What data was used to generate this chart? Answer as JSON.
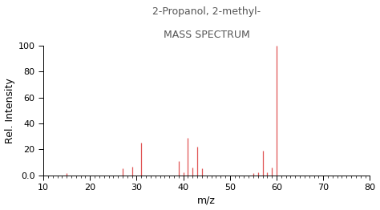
{
  "title_line1": "2-Propanol, 2-methyl-",
  "title_line2": "MASS SPECTRUM",
  "xlabel": "m/z",
  "ylabel": "Rel. Intensity",
  "xlim": [
    10,
    80
  ],
  "ylim": [
    0,
    100
  ],
  "xticks": [
    10,
    20,
    30,
    40,
    50,
    60,
    70,
    80
  ],
  "yticks": [
    0.0,
    20,
    40,
    60,
    80,
    100
  ],
  "ytick_labels": [
    "0.0",
    "20",
    "40",
    "60",
    "80",
    "100"
  ],
  "bar_color": "#e05555",
  "background_color": "#ffffff",
  "title_color": "#555555",
  "peaks": [
    [
      15,
      2.0
    ],
    [
      27,
      5.5
    ],
    [
      29,
      6.5
    ],
    [
      31,
      25.0
    ],
    [
      39,
      11.0
    ],
    [
      40,
      2.5
    ],
    [
      41,
      29.0
    ],
    [
      42,
      6.0
    ],
    [
      43,
      22.0
    ],
    [
      44,
      5.5
    ],
    [
      55,
      1.5
    ],
    [
      56,
      2.5
    ],
    [
      57,
      19.0
    ],
    [
      58,
      2.5
    ],
    [
      59,
      6.0
    ],
    [
      60,
      100.0
    ]
  ]
}
